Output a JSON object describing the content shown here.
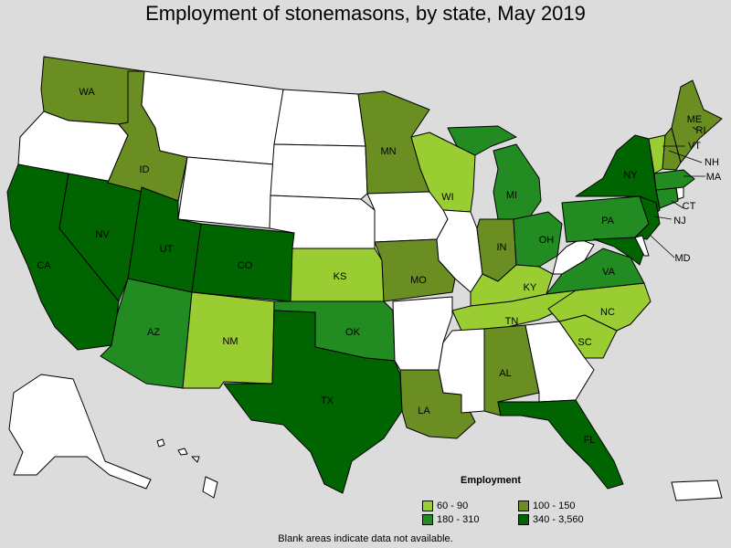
{
  "title": "Employment of stonemasons, by state, May 2019",
  "footnote": "Blank areas indicate data not available.",
  "legend": {
    "title": "Employment",
    "bins": [
      {
        "label": "60 - 90",
        "color": "#9acd32"
      },
      {
        "label": "100 - 150",
        "color": "#6b8e23"
      },
      {
        "label": "180 - 310",
        "color": "#228b22"
      },
      {
        "label": "340 - 3,560",
        "color": "#006400"
      }
    ]
  },
  "colors": {
    "none": "#ffffff",
    "background": "#dcdcdc"
  },
  "states": [
    {
      "abbr": "WA",
      "bin": 1
    },
    {
      "abbr": "OR",
      "bin": null
    },
    {
      "abbr": "CA",
      "bin": 3
    },
    {
      "abbr": "NV",
      "bin": 3
    },
    {
      "abbr": "ID",
      "bin": 1
    },
    {
      "abbr": "MT",
      "bin": null
    },
    {
      "abbr": "WY",
      "bin": null
    },
    {
      "abbr": "UT",
      "bin": 3
    },
    {
      "abbr": "AZ",
      "bin": 2
    },
    {
      "abbr": "CO",
      "bin": 3
    },
    {
      "abbr": "NM",
      "bin": 0
    },
    {
      "abbr": "ND",
      "bin": null
    },
    {
      "abbr": "SD",
      "bin": null
    },
    {
      "abbr": "NE",
      "bin": null
    },
    {
      "abbr": "KS",
      "bin": 0
    },
    {
      "abbr": "OK",
      "bin": 2
    },
    {
      "abbr": "TX",
      "bin": 3
    },
    {
      "abbr": "MN",
      "bin": 1
    },
    {
      "abbr": "IA",
      "bin": null
    },
    {
      "abbr": "MO",
      "bin": 1
    },
    {
      "abbr": "AR",
      "bin": null
    },
    {
      "abbr": "LA",
      "bin": 1
    },
    {
      "abbr": "WI",
      "bin": 0
    },
    {
      "abbr": "IL",
      "bin": null
    },
    {
      "abbr": "MI",
      "bin": 2
    },
    {
      "abbr": "IN",
      "bin": 1
    },
    {
      "abbr": "OH",
      "bin": 2
    },
    {
      "abbr": "KY",
      "bin": 0
    },
    {
      "abbr": "TN",
      "bin": 0
    },
    {
      "abbr": "MS",
      "bin": null
    },
    {
      "abbr": "AL",
      "bin": 1
    },
    {
      "abbr": "GA",
      "bin": null
    },
    {
      "abbr": "FL",
      "bin": 3
    },
    {
      "abbr": "SC",
      "bin": 0
    },
    {
      "abbr": "NC",
      "bin": 0
    },
    {
      "abbr": "VA",
      "bin": 2
    },
    {
      "abbr": "WV",
      "bin": null
    },
    {
      "abbr": "PA",
      "bin": 2
    },
    {
      "abbr": "NY",
      "bin": 3
    },
    {
      "abbr": "NJ",
      "bin": 3
    },
    {
      "abbr": "MD",
      "bin": 3
    },
    {
      "abbr": "DE",
      "bin": null
    },
    {
      "abbr": "CT",
      "bin": 2
    },
    {
      "abbr": "RI",
      "bin": null
    },
    {
      "abbr": "MA",
      "bin": 2
    },
    {
      "abbr": "VT",
      "bin": 0
    },
    {
      "abbr": "NH",
      "bin": 1
    },
    {
      "abbr": "ME",
      "bin": 1
    },
    {
      "abbr": "AK",
      "bin": null
    },
    {
      "abbr": "HI",
      "bin": null
    },
    {
      "abbr": "PR",
      "bin": null
    }
  ]
}
